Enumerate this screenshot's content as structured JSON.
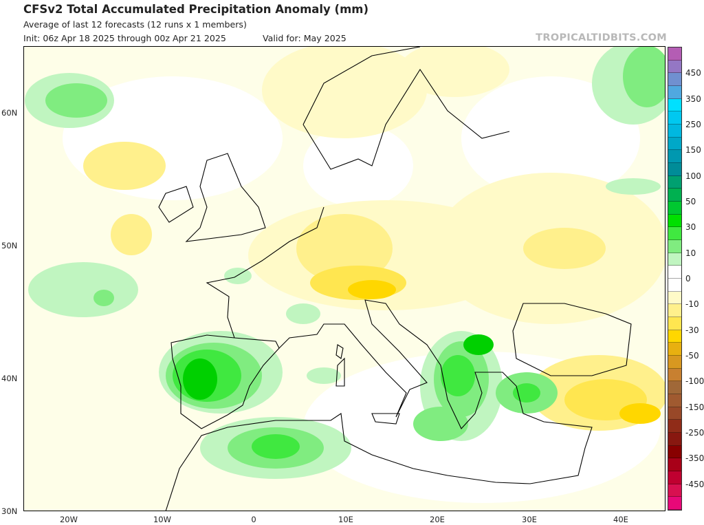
{
  "header": {
    "title": "CFSv2 Total Accumulated Precipitation Anomaly (mm)",
    "subtitle": "Average of last 12 forecasts (12 runs x 1 members)",
    "init": "Init: 06z Apr 18 2025 through 00z Apr 21 2025",
    "valid": "Valid for: May 2025",
    "brand": "TROPICALTIDBITS.COM"
  },
  "map": {
    "region": "Europe",
    "lon_range": [
      -25,
      45
    ],
    "lat_range": [
      30,
      65
    ],
    "x_ticks": [
      {
        "lon": -20,
        "label": "20W"
      },
      {
        "lon": -10,
        "label": "10W"
      },
      {
        "lon": 0,
        "label": "0"
      },
      {
        "lon": 10,
        "label": "10E"
      },
      {
        "lon": 20,
        "label": "20E"
      },
      {
        "lon": 30,
        "label": "30E"
      },
      {
        "lon": 40,
        "label": "40E"
      }
    ],
    "y_ticks": [
      {
        "lat": 60,
        "label": "60N"
      },
      {
        "lat": 50,
        "label": "50N"
      },
      {
        "lat": 40,
        "label": "40N"
      },
      {
        "lat": 30,
        "label": "30N"
      }
    ]
  },
  "colorbar": {
    "labels": [
      "450",
      "350",
      "250",
      "150",
      "100",
      "50",
      "30",
      "10",
      "0",
      "-10",
      "-30",
      "-50",
      "-100",
      "-150",
      "-250",
      "-350",
      "-450"
    ],
    "colors": [
      "#b45db4",
      "#9477c4",
      "#7090d0",
      "#50a8e0",
      "#00e0ff",
      "#00c8f0",
      "#00b8e0",
      "#00a8c8",
      "#0098b0",
      "#008c98",
      "#00a070",
      "#00b050",
      "#00c830",
      "#00e000",
      "#40e840",
      "#80ec80",
      "#c0f5c0",
      "#ffffff",
      "#ffffff",
      "#fffac8",
      "#fff08c",
      "#ffe650",
      "#ffd700",
      "#e8b010",
      "#d89820",
      "#c88030",
      "#a06838",
      "#a05a30",
      "#984828",
      "#902c18",
      "#881810",
      "#880000",
      "#a80018",
      "#c00030",
      "#d81050",
      "#e80878"
    ]
  },
  "colors": {
    "green1": "#c0f5c0",
    "green2": "#80ec80",
    "green3": "#40e840",
    "green4": "#00d000",
    "yellow1": "#fffac8",
    "yellow2": "#fff08c",
    "yellow3": "#ffe650",
    "yellow4": "#ffd700"
  }
}
